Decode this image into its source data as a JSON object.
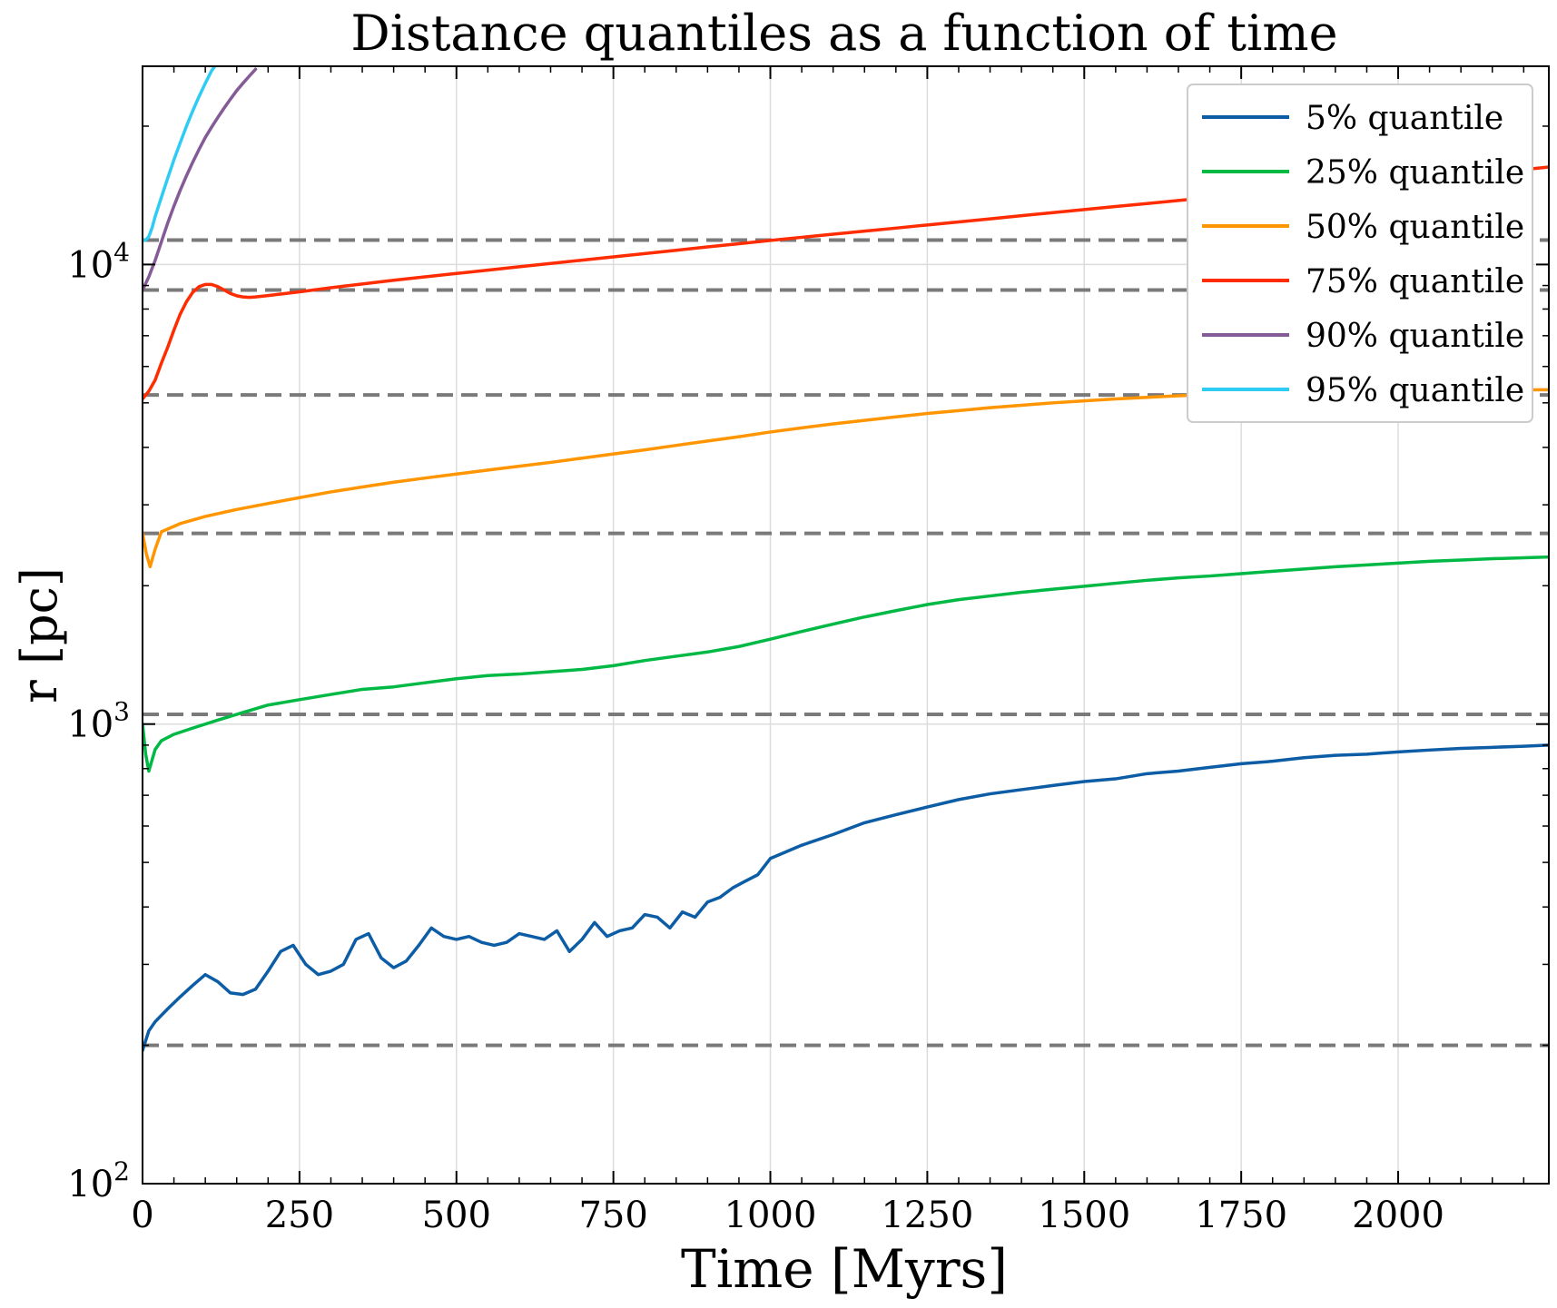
{
  "chart_data": {
    "type": "line",
    "title": "Distance quantiles as a function of time",
    "xlabel": "Time [Myrs]",
    "ylabel": "r [pc]",
    "xlim": [
      0,
      2240
    ],
    "ylim": [
      100,
      27000
    ],
    "yscale": "log",
    "grid": true,
    "legend_position": "top-right",
    "x_ticks": [
      "0",
      "250",
      "500",
      "750",
      "1000",
      "1250",
      "1500",
      "1750",
      "2000"
    ],
    "y_ticks": [
      {
        "value": 100,
        "base": "10",
        "exp": "2"
      },
      {
        "value": 1000,
        "base": "10",
        "exp": "3"
      },
      {
        "value": 10000,
        "base": "10",
        "exp": "4"
      }
    ],
    "reference_lines": [
      200,
      1050,
      2600,
      5200,
      8800,
      11300
    ],
    "series": [
      {
        "name": "5% quantile",
        "color": "#0C5DA5",
        "x": [
          0,
          10,
          20,
          40,
          60,
          80,
          100,
          120,
          140,
          160,
          180,
          200,
          220,
          240,
          260,
          280,
          300,
          320,
          340,
          360,
          380,
          400,
          420,
          440,
          460,
          480,
          500,
          520,
          540,
          560,
          580,
          600,
          620,
          640,
          660,
          680,
          700,
          720,
          740,
          760,
          780,
          800,
          820,
          840,
          860,
          880,
          900,
          920,
          940,
          960,
          980,
          1000,
          1050,
          1100,
          1150,
          1200,
          1250,
          1300,
          1350,
          1400,
          1450,
          1500,
          1550,
          1600,
          1650,
          1700,
          1750,
          1800,
          1850,
          1900,
          1950,
          2000,
          2050,
          2100,
          2150,
          2200,
          2240
        ],
        "y": [
          195,
          215,
          225,
          240,
          255,
          270,
          285,
          275,
          260,
          258,
          265,
          290,
          320,
          330,
          300,
          285,
          290,
          300,
          340,
          350,
          310,
          295,
          305,
          330,
          360,
          345,
          340,
          345,
          335,
          330,
          335,
          350,
          345,
          340,
          355,
          320,
          340,
          370,
          345,
          355,
          360,
          385,
          380,
          360,
          390,
          380,
          410,
          420,
          440,
          455,
          470,
          510,
          545,
          575,
          610,
          635,
          660,
          685,
          705,
          720,
          735,
          750,
          760,
          780,
          790,
          805,
          820,
          830,
          845,
          855,
          860,
          870,
          878,
          885,
          890,
          895,
          900
        ]
      },
      {
        "name": "25% quantile",
        "color": "#00B945",
        "x": [
          0,
          5,
          10,
          20,
          30,
          50,
          80,
          120,
          160,
          200,
          250,
          300,
          350,
          400,
          450,
          500,
          550,
          600,
          650,
          700,
          750,
          800,
          850,
          900,
          950,
          1000,
          1050,
          1100,
          1150,
          1200,
          1250,
          1300,
          1350,
          1400,
          1450,
          1500,
          1550,
          1600,
          1650,
          1700,
          1750,
          1800,
          1850,
          1900,
          1950,
          2000,
          2050,
          2100,
          2150,
          2200,
          2240
        ],
        "y": [
          1000,
          860,
          790,
          880,
          920,
          950,
          980,
          1020,
          1060,
          1100,
          1130,
          1160,
          1190,
          1205,
          1230,
          1255,
          1275,
          1285,
          1300,
          1315,
          1340,
          1375,
          1405,
          1435,
          1475,
          1530,
          1590,
          1650,
          1710,
          1765,
          1820,
          1865,
          1900,
          1935,
          1965,
          1995,
          2025,
          2055,
          2080,
          2100,
          2125,
          2150,
          2175,
          2200,
          2220,
          2240,
          2260,
          2275,
          2290,
          2300,
          2310
        ]
      },
      {
        "name": "50% quantile",
        "color": "#FF9500",
        "x": [
          0,
          6,
          12,
          20,
          30,
          60,
          100,
          150,
          200,
          250,
          300,
          350,
          400,
          450,
          500,
          550,
          600,
          650,
          700,
          750,
          800,
          850,
          900,
          950,
          1000,
          1050,
          1100,
          1150,
          1200,
          1250,
          1300,
          1350,
          1400,
          1450,
          1500,
          1550,
          1600,
          1650,
          1700,
          1750,
          1800,
          1850,
          1900,
          1950,
          2000,
          2050,
          2100,
          2150,
          2200,
          2240
        ],
        "y": [
          2600,
          2350,
          2200,
          2400,
          2620,
          2730,
          2830,
          2930,
          3020,
          3110,
          3200,
          3280,
          3360,
          3430,
          3500,
          3570,
          3640,
          3710,
          3790,
          3870,
          3950,
          4040,
          4130,
          4220,
          4320,
          4410,
          4500,
          4580,
          4660,
          4740,
          4810,
          4880,
          4940,
          5000,
          5050,
          5100,
          5140,
          5180,
          5210,
          5240,
          5270,
          5290,
          5300,
          5310,
          5320,
          5330,
          5330,
          5330,
          5335,
          5340
        ]
      },
      {
        "name": "75% quantile",
        "color": "#FF2C00",
        "x": [
          0,
          10,
          20,
          30,
          40,
          50,
          60,
          70,
          80,
          90,
          100,
          110,
          120,
          130,
          140,
          150,
          160,
          170,
          180,
          200,
          250,
          300,
          350,
          400,
          450,
          500,
          550,
          600,
          650,
          700,
          750,
          800,
          850,
          900,
          950,
          1000,
          1050,
          1100,
          1150,
          1200,
          1250,
          1300,
          1350,
          1400,
          1450,
          1500,
          1550,
          1600,
          1650,
          1700,
          1750,
          1800,
          1850,
          1900,
          1950,
          2000,
          2050,
          2100,
          2150,
          2200,
          2240
        ],
        "y": [
          5100,
          5300,
          5600,
          6100,
          6600,
          7200,
          7800,
          8300,
          8700,
          8950,
          9050,
          9050,
          8950,
          8800,
          8650,
          8550,
          8500,
          8480,
          8500,
          8560,
          8720,
          8900,
          9070,
          9240,
          9400,
          9560,
          9720,
          9890,
          10050,
          10220,
          10390,
          10560,
          10740,
          10920,
          11100,
          11280,
          11460,
          11640,
          11820,
          12000,
          12190,
          12380,
          12570,
          12770,
          12970,
          13170,
          13370,
          13570,
          13780,
          13990,
          14200,
          14410,
          14620,
          14830,
          15040,
          15250,
          15460,
          15670,
          15880,
          16090,
          16300
        ]
      },
      {
        "name": "90% quantile",
        "color": "#845B97",
        "x": [
          0,
          10,
          20,
          30,
          40,
          50,
          60,
          70,
          80,
          90,
          100,
          110,
          120,
          130,
          140,
          150,
          160,
          170,
          180
        ],
        "y": [
          8800,
          9400,
          10200,
          11200,
          12300,
          13400,
          14500,
          15600,
          16700,
          17800,
          18900,
          19900,
          20900,
          21900,
          22900,
          23900,
          24800,
          25700,
          26600
        ]
      },
      {
        "name": "95% quantile",
        "color": "#2ECCF5",
        "x": [
          0,
          5,
          10,
          15,
          20,
          30,
          40,
          50,
          60,
          70,
          80,
          90,
          100,
          110,
          115
        ],
        "y": [
          11300,
          11300,
          11500,
          12000,
          12700,
          14000,
          15400,
          16900,
          18400,
          20000,
          21600,
          23200,
          24800,
          26400,
          27000
        ]
      }
    ]
  }
}
